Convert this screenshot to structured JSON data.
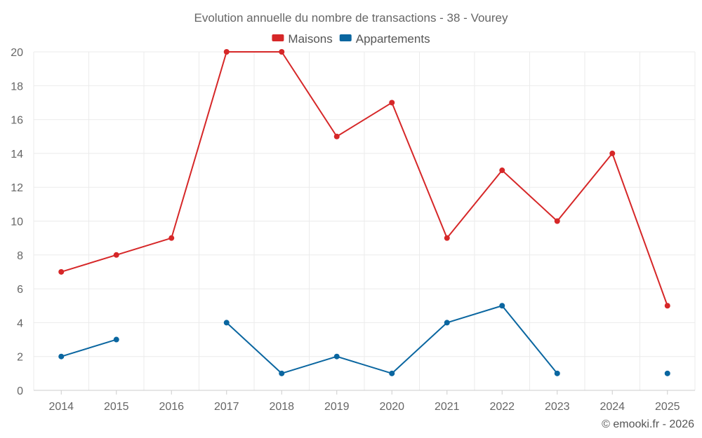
{
  "chart_data": {
    "type": "line",
    "title": "Evolution annuelle du nombre de transactions - 38 - Vourey",
    "xlabel": "",
    "ylabel": "",
    "categories": [
      "2014",
      "2015",
      "2016",
      "2017",
      "2018",
      "2019",
      "2020",
      "2021",
      "2022",
      "2023",
      "2024",
      "2025"
    ],
    "ylim": [
      0,
      20
    ],
    "yticks": [
      0,
      2,
      4,
      6,
      8,
      10,
      12,
      14,
      16,
      18,
      20
    ],
    "grid": true,
    "legend_position": "top-center",
    "series": [
      {
        "name": "Maisons",
        "color": "#d62728",
        "values": [
          7,
          8,
          9,
          20,
          20,
          15,
          17,
          9,
          13,
          10,
          14,
          5
        ]
      },
      {
        "name": "Appartements",
        "color": "#0a66a0",
        "values": [
          2,
          3,
          null,
          4,
          1,
          2,
          1,
          4,
          5,
          1,
          null,
          1
        ]
      }
    ]
  },
  "credit": "© emooki.fr - 2026"
}
